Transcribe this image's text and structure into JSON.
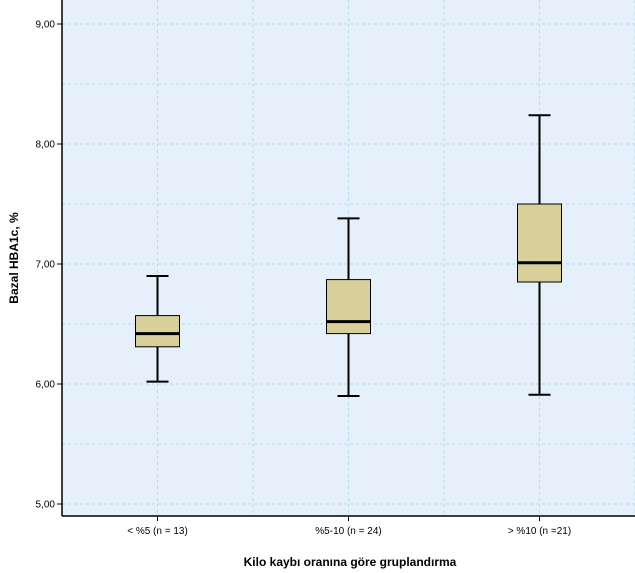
{
  "chart_data": {
    "type": "boxplot",
    "title": "",
    "xlabel": "Kilo kaybı oranına göre gruplandırma",
    "ylabel": "Bazal HBA1c, %",
    "ylim": [
      4.9,
      9.2
    ],
    "y_ticks": [
      5.0,
      6.0,
      7.0,
      8.0,
      9.0
    ],
    "y_tick_labels": [
      "5,00",
      "6,00",
      "7,00",
      "8,00",
      "9,00"
    ],
    "grid": true,
    "categories": [
      "< %5 (n = 13)",
      "%5-10 (n = 24)",
      "> %10 (n =21)"
    ],
    "boxes": [
      {
        "min": 6.02,
        "q1": 6.31,
        "median": 6.42,
        "q3": 6.57,
        "max": 6.9
      },
      {
        "min": 5.9,
        "q1": 6.42,
        "median": 6.52,
        "q3": 6.87,
        "max": 7.38
      },
      {
        "min": 5.91,
        "q1": 6.85,
        "median": 7.01,
        "q3": 7.5,
        "max": 8.24
      }
    ]
  },
  "colors": {
    "plot_background": "#e6f0fa",
    "grid": "#b7dcea",
    "box_fill": "#d8cf9a",
    "box_stroke": "#000000",
    "axis": "#000000"
  }
}
